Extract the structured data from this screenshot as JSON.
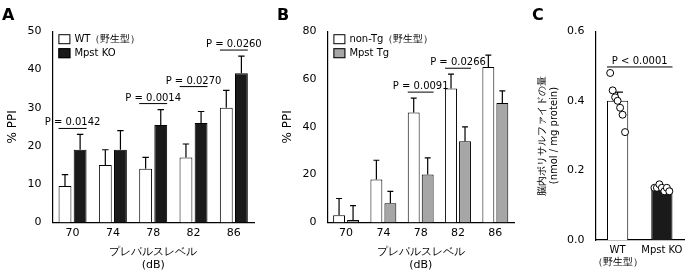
{
  "chart_data": [
    {
      "type": "bar",
      "title": "A",
      "categories": [
        "70",
        "74",
        "78",
        "82",
        "86"
      ],
      "x_label": [
        "プレパルスレベル",
        "(dB)"
      ],
      "y_label": "% PPI",
      "ylim": [
        0,
        50
      ],
      "yticks": [
        0,
        10,
        20,
        30,
        40,
        50
      ],
      "legend": "upper left",
      "series": [
        {
          "name": "WT（野生型）",
          "color": "#ffffff",
          "values": [
            9.5,
            15,
            14,
            17,
            30
          ],
          "errors": [
            3,
            4,
            3,
            3.5,
            4.5
          ]
        },
        {
          "name": "Mpst KO",
          "color": "#1a1a1a",
          "values": [
            19,
            19,
            25.5,
            26,
            39
          ],
          "errors": [
            4,
            5,
            4,
            3,
            4.5
          ]
        }
      ],
      "annotations": [
        {
          "text": "P = 0.0142",
          "categories": [
            "70"
          ]
        },
        {
          "text": "P = 0.0014",
          "categories": [
            "78"
          ]
        },
        {
          "text": "P = 0.0270",
          "categories": [
            "82"
          ]
        },
        {
          "text": "P = 0.0260",
          "categories": [
            "86"
          ]
        }
      ]
    },
    {
      "type": "bar",
      "title": "B",
      "categories": [
        "70",
        "74",
        "78",
        "82",
        "86"
      ],
      "x_label": [
        "プレパルスレベル",
        "(dB)"
      ],
      "y_label": "% PPI",
      "ylim": [
        0,
        80
      ],
      "yticks": [
        0,
        20,
        40,
        60,
        80
      ],
      "legend": "upper left",
      "series": [
        {
          "name": "non-Tg（野生型）",
          "color": "#ffffff",
          "values": [
            3,
            18,
            46,
            56,
            65
          ],
          "errors": [
            7,
            8,
            6,
            6,
            5
          ]
        },
        {
          "name": "Mpst Tg",
          "color": "#a6a6a6",
          "values": [
            1,
            8,
            20,
            34,
            50
          ],
          "errors": [
            6,
            5,
            7,
            6,
            5
          ]
        }
      ],
      "annotations": [
        {
          "text": "P = 0.0091",
          "categories": [
            "78"
          ]
        },
        {
          "text": "P = 0.0266",
          "categories": [
            "82"
          ]
        }
      ]
    },
    {
      "type": "bar",
      "title": "C",
      "categories": [
        [
          "WT",
          "（野生型）"
        ],
        "Mpst KO"
      ],
      "y_label": [
        "脳内ポリサルファイドの量",
        "(nmol / mg protein)"
      ],
      "ylim": [
        0,
        0.6
      ],
      "yticks": [
        {
          "value": 0,
          "label": "0.0"
        },
        {
          "value": 0.2,
          "label": "0.2"
        },
        {
          "value": 0.4,
          "label": "0.4"
        },
        {
          "value": 0.6,
          "label": "0.6"
        }
      ],
      "series": [
        {
          "colors": [
            "#ffffff",
            "#1a1a1a"
          ],
          "values": [
            0.4,
            0.15
          ],
          "errors": [
            0.025,
            0.005
          ],
          "points": [
            [
              0.48,
              0.43,
              0.41,
              0.4,
              0.38,
              0.36,
              0.31
            ],
            [
              0.15,
              0.15,
              0.16,
              0.15,
              0.14,
              0.15,
              0.14
            ]
          ]
        }
      ],
      "annotations": [
        {
          "text": "P < 0.0001",
          "categories": [
            [
              "WT",
              "（野生型）"
            ],
            "Mpst KO"
          ]
        }
      ]
    }
  ]
}
